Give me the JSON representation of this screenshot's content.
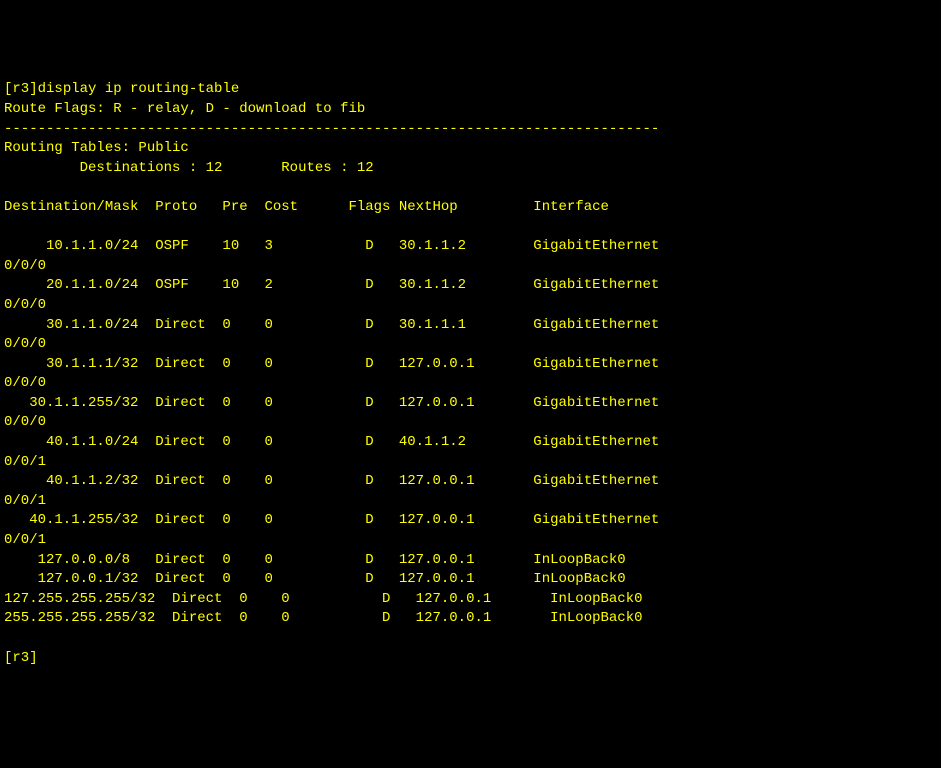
{
  "colors": {
    "background": "#000000",
    "text": "#ffff00"
  },
  "typography": {
    "font_family": "Courier New",
    "font_size_pt": 10
  },
  "prompt_host": "[r3]",
  "command": "display ip routing-table",
  "flags_line": "Route Flags: R - relay, D - download to fib",
  "divider": "------------------------------------------------------------------------------",
  "tables_header": "Routing Tables: Public",
  "summary": {
    "destinations_label": "         Destinations : ",
    "destinations_value": "12",
    "routes_label": "       Routes : ",
    "routes_value": "12"
  },
  "columns": {
    "dest": "Destination/Mask",
    "proto": "Proto",
    "pre": "Pre",
    "cost": "Cost",
    "flags": "Flags",
    "nexthop": "NextHop",
    "interface": "Interface"
  },
  "routes": [
    {
      "dest": "     10.1.1.0/24",
      "proto": "OSPF  ",
      "pre": "10",
      "cost": "3",
      "flags": "D",
      "nexthop": "30.1.1.2",
      "interface": "GigabitEthernet",
      "wrap": "0/0/0"
    },
    {
      "dest": "     20.1.1.0/24",
      "proto": "OSPF  ",
      "pre": "10",
      "cost": "2",
      "flags": "D",
      "nexthop": "30.1.1.2",
      "interface": "GigabitEthernet",
      "wrap": "0/0/0"
    },
    {
      "dest": "     30.1.1.0/24",
      "proto": "Direct",
      "pre": "0",
      "cost": "0",
      "flags": "D",
      "nexthop": "30.1.1.1",
      "interface": "GigabitEthernet",
      "wrap": "0/0/0"
    },
    {
      "dest": "     30.1.1.1/32",
      "proto": "Direct",
      "pre": "0",
      "cost": "0",
      "flags": "D",
      "nexthop": "127.0.0.1",
      "interface": "GigabitEthernet",
      "wrap": "0/0/0"
    },
    {
      "dest": "   30.1.1.255/32",
      "proto": "Direct",
      "pre": "0",
      "cost": "0",
      "flags": "D",
      "nexthop": "127.0.0.1",
      "interface": "GigabitEthernet",
      "wrap": "0/0/0"
    },
    {
      "dest": "     40.1.1.0/24",
      "proto": "Direct",
      "pre": "0",
      "cost": "0",
      "flags": "D",
      "nexthop": "40.1.1.2",
      "interface": "GigabitEthernet",
      "wrap": "0/0/1"
    },
    {
      "dest": "     40.1.1.2/32",
      "proto": "Direct",
      "pre": "0",
      "cost": "0",
      "flags": "D",
      "nexthop": "127.0.0.1",
      "interface": "GigabitEthernet",
      "wrap": "0/0/1"
    },
    {
      "dest": "   40.1.1.255/32",
      "proto": "Direct",
      "pre": "0",
      "cost": "0",
      "flags": "D",
      "nexthop": "127.0.0.1",
      "interface": "GigabitEthernet",
      "wrap": "0/0/1"
    },
    {
      "dest": "    127.0.0.0/8 ",
      "proto": "Direct",
      "pre": "0",
      "cost": "0",
      "flags": "D",
      "nexthop": "127.0.0.1",
      "interface": "InLoopBack0",
      "wrap": ""
    },
    {
      "dest": "    127.0.0.1/32",
      "proto": "Direct",
      "pre": "0",
      "cost": "0",
      "flags": "D",
      "nexthop": "127.0.0.1",
      "interface": "InLoopBack0",
      "wrap": ""
    },
    {
      "dest": "127.255.255.255/32",
      "proto": "Direct",
      "pre": "0",
      "cost": "0",
      "flags": "D",
      "nexthop": "127.0.0.1",
      "interface": "InLoopBack0",
      "wrap": "",
      "overflow": true
    },
    {
      "dest": "255.255.255.255/32",
      "proto": "Direct",
      "pre": "0",
      "cost": "0",
      "flags": "D",
      "nexthop": "127.0.0.1",
      "interface": "InLoopBack0",
      "wrap": "",
      "overflow": true
    }
  ],
  "final_prompt": "[r3]"
}
